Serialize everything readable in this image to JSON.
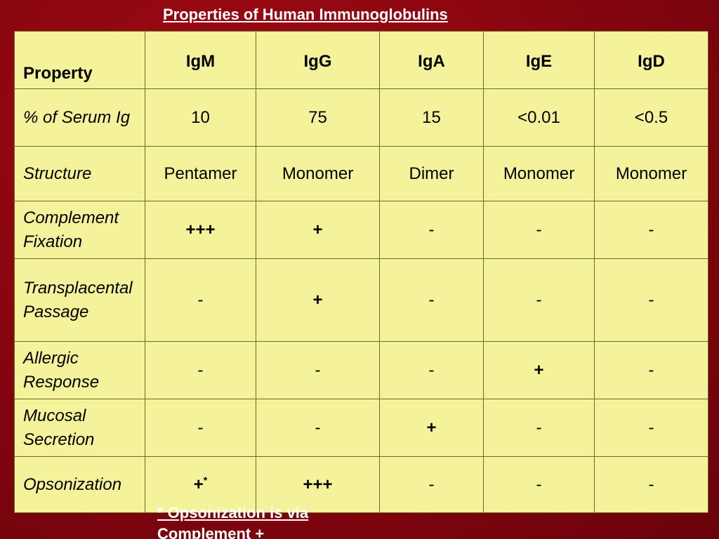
{
  "title": "Properties of Human Immunoglobulins",
  "header": {
    "property": "Property",
    "columns": [
      "IgM",
      "IgG",
      "IgA",
      "IgE",
      "IgD"
    ]
  },
  "rows": [
    {
      "label": "% of Serum Ig",
      "values": [
        "10",
        "75",
        "15",
        "<0.01",
        "<0.5"
      ]
    },
    {
      "label": "Structure",
      "values": [
        "Pentamer",
        "Monomer",
        "Dimer",
        "Monomer",
        "Monomer"
      ]
    },
    {
      "label": "Complement Fixation",
      "values": [
        "+++",
        "+",
        "-",
        "-",
        "-"
      ]
    },
    {
      "label": "Transplacental Passage",
      "values": [
        "-",
        "+",
        "-",
        "-",
        "-"
      ]
    },
    {
      "label": "Allergic Response",
      "values": [
        "-",
        "-",
        "-",
        "+",
        "-"
      ]
    },
    {
      "label": "Mucosal Secretion",
      "values": [
        "-",
        "-",
        "+",
        "-",
        "-"
      ]
    },
    {
      "label": "Opsonization",
      "values": [
        "+",
        "+++",
        "-",
        "-",
        "-"
      ],
      "mark": "*"
    }
  ],
  "footnote": "* Opsonization is via\nComplement   +"
}
